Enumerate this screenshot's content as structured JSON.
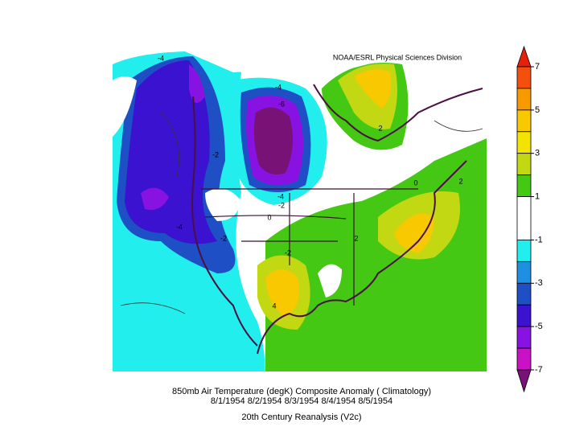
{
  "header": {
    "credit": "NOAA/ESRL Physical Sciences Division"
  },
  "caption": {
    "line1": "850mb Air Temperature (degK) Composite Anomaly ( Climatology)",
    "line2": "8/1/1954 8/2/1954 8/3/1954 8/4/1954 8/5/1954",
    "line3": "20th Century Reanalysis (V2c)"
  },
  "contour_labels": [
    -4,
    -4,
    -6,
    -2,
    -4,
    -2,
    0,
    -4,
    -2,
    2,
    2,
    0,
    2,
    -2,
    4
  ],
  "colorbar": {
    "levels": [
      7,
      6,
      5,
      4,
      3,
      2,
      1,
      -1,
      -2,
      -3,
      -4,
      -5,
      -6,
      -7
    ],
    "colors": [
      "#e8200a",
      "#f2500c",
      "#f79a00",
      "#f8c800",
      "#f2e400",
      "#c2d812",
      "#44c814",
      "#ffffff",
      "#22eeee",
      "#1f8fdf",
      "#1e4fc4",
      "#3a12d0",
      "#8812e2",
      "#c812c4",
      "#781276"
    ],
    "ticks": [
      7,
      5,
      3,
      1,
      -1,
      -3,
      -5,
      -7
    ]
  }
}
